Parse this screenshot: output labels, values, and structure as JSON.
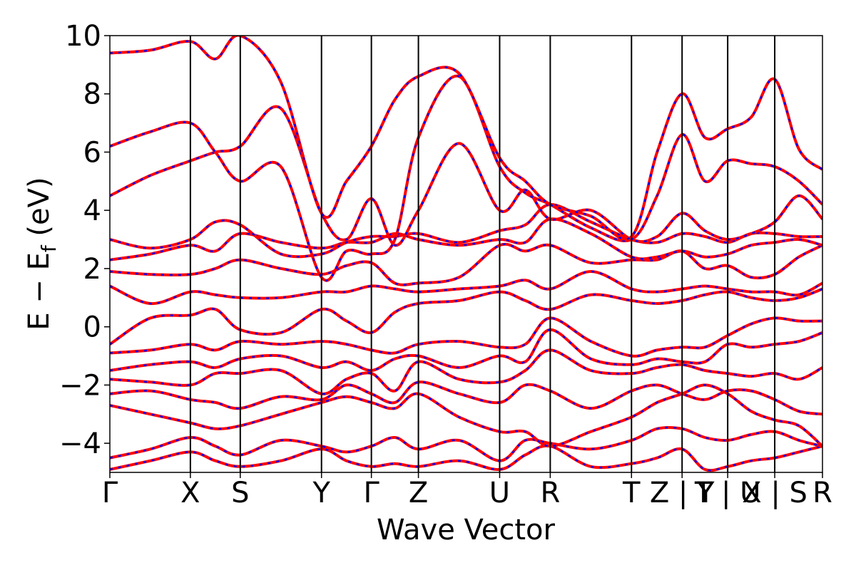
{
  "chart_data": {
    "type": "line",
    "title": "",
    "xlabel": "Wave Vector",
    "ylabel": "E − E_f (eV)",
    "ylabel_parts": {
      "main": "E − E",
      "sub": "f",
      "unit": " (eV)"
    },
    "ylim": [
      -5,
      10
    ],
    "y_ticks": [
      -4,
      -2,
      0,
      2,
      4,
      6,
      8,
      10
    ],
    "y_tick_labels": [
      "−4",
      "−2",
      "0",
      "2",
      "4",
      "6",
      "8",
      "10"
    ],
    "grid": false,
    "legend": "none",
    "x_range": [
      0,
      1
    ],
    "x_tick_labels": [
      "Γ",
      "X",
      "S",
      "Y",
      "Γ",
      "Z",
      "U",
      "R",
      "T",
      "Z | Y",
      "T | U",
      "X | S",
      "R"
    ],
    "x_tick_positions": [
      0.0,
      0.113,
      0.183,
      0.297,
      0.367,
      0.433,
      0.547,
      0.618,
      0.732,
      0.803,
      0.867,
      0.933,
      1.0
    ],
    "colors": {
      "band_up": "#ff0000",
      "band_down": "#0000ff"
    },
    "series": [
      {
        "name": "",
        "color": "#ff0000",
        "style": "solid",
        "note": "spin-up bands; identical to spin-down"
      },
      {
        "name": "",
        "color": "#0000ff",
        "style": "dashed"
      }
    ],
    "bands_x": [
      0.0,
      0.057,
      0.113,
      0.148,
      0.183,
      0.24,
      0.297,
      0.332,
      0.367,
      0.4,
      0.433,
      0.49,
      0.547,
      0.583,
      0.618,
      0.675,
      0.732,
      0.768,
      0.803,
      0.835,
      0.867,
      0.9,
      0.933,
      0.967,
      1.0
    ],
    "bands": [
      [
        -4.9,
        -4.6,
        -4.3,
        -4.6,
        -4.8,
        -4.6,
        -4.2,
        -4.6,
        -4.8,
        -4.7,
        -4.8,
        -4.6,
        -4.9,
        -4.4,
        -4.1,
        -4.8,
        -4.7,
        -4.5,
        -4.2,
        -4.9,
        -4.8,
        -4.6,
        -4.5,
        -4.3,
        -4.1
      ],
      [
        -4.5,
        -4.2,
        -3.8,
        -4.1,
        -4.4,
        -3.9,
        -4.1,
        -4.3,
        -4.1,
        -3.8,
        -4.2,
        -3.9,
        -4.6,
        -3.9,
        -4.0,
        -4.2,
        -3.9,
        -3.5,
        -3.5,
        -3.8,
        -3.9,
        -3.7,
        -3.6,
        -3.9,
        -4.1
      ],
      [
        -2.7,
        -3.0,
        -3.3,
        -3.5,
        -3.4,
        -3.0,
        -2.6,
        -2.4,
        -2.6,
        -2.8,
        -2.3,
        -3.1,
        -3.6,
        -3.6,
        -4.1,
        -3.6,
        -3.1,
        -2.6,
        -2.3,
        -2.0,
        -2.3,
        -2.9,
        -3.2,
        -3.4,
        -4.1
      ],
      [
        -2.3,
        -2.2,
        -2.5,
        -2.6,
        -2.8,
        -2.4,
        -2.5,
        -2.0,
        -2.3,
        -2.6,
        -1.9,
        -2.3,
        -2.6,
        -2.0,
        -2.2,
        -2.8,
        -2.2,
        -2.0,
        -2.3,
        -2.5,
        -2.2,
        -2.2,
        -2.5,
        -2.9,
        -3.0
      ],
      [
        -1.8,
        -1.9,
        -2.0,
        -1.6,
        -1.6,
        -1.5,
        -2.3,
        -1.8,
        -1.6,
        -2.2,
        -1.2,
        -1.8,
        -1.9,
        -1.5,
        -0.8,
        -1.5,
        -1.6,
        -1.4,
        -1.3,
        -1.5,
        -1.6,
        -1.7,
        -1.6,
        -1.8,
        -1.4
      ],
      [
        -1.5,
        -1.3,
        -1.2,
        -1.4,
        -1.1,
        -1.0,
        -1.4,
        -1.2,
        -1.5,
        -1.1,
        -1.0,
        -1.4,
        -1.0,
        -1.2,
        -0.1,
        -1.1,
        -1.3,
        -1.1,
        -1.2,
        -1.2,
        -0.6,
        -0.7,
        -0.6,
        -0.5,
        -0.2
      ],
      [
        -0.9,
        -0.8,
        -0.6,
        -0.8,
        -0.5,
        -0.6,
        -0.5,
        -0.6,
        -0.8,
        -0.9,
        -0.6,
        -0.5,
        -0.7,
        -0.6,
        0.3,
        -0.5,
        -1.0,
        -0.8,
        -0.7,
        -0.7,
        -0.3,
        0.1,
        0.3,
        0.2,
        0.2
      ],
      [
        -0.6,
        0.3,
        0.4,
        0.6,
        -0.1,
        -0.2,
        0.6,
        0.2,
        -0.2,
        0.5,
        0.8,
        0.9,
        1.2,
        0.9,
        0.6,
        1.1,
        0.9,
        0.8,
        0.9,
        1.1,
        1.2,
        1.0,
        0.9,
        1.0,
        1.3
      ],
      [
        1.4,
        0.8,
        1.2,
        1.1,
        1.0,
        1.0,
        1.2,
        1.2,
        1.4,
        1.3,
        1.2,
        1.3,
        1.4,
        1.6,
        1.3,
        1.9,
        1.3,
        1.2,
        1.3,
        1.4,
        1.3,
        1.2,
        1.2,
        1.1,
        1.5
      ],
      [
        1.9,
        1.8,
        1.8,
        2.0,
        2.3,
        2.0,
        1.8,
        2.1,
        2.2,
        1.5,
        1.5,
        1.7,
        2.8,
        2.6,
        2.8,
        2.2,
        2.3,
        2.3,
        2.6,
        2.0,
        2.1,
        1.7,
        1.8,
        2.4,
        2.8
      ],
      [
        2.3,
        2.5,
        2.8,
        2.6,
        3.2,
        2.9,
        2.7,
        2.9,
        2.9,
        3.2,
        3.0,
        2.8,
        3.0,
        2.9,
        3.7,
        3.2,
        2.4,
        2.4,
        2.6,
        2.4,
        2.5,
        2.8,
        2.9,
        3.0,
        2.8
      ],
      [
        3.0,
        2.7,
        3.0,
        3.6,
        3.5,
        2.5,
        2.5,
        2.9,
        3.1,
        3.1,
        3.2,
        2.9,
        3.3,
        3.5,
        4.2,
        3.6,
        3.0,
        2.9,
        3.2,
        3.1,
        2.9,
        3.2,
        3.2,
        3.1,
        3.1
      ],
      [
        4.5,
        5.2,
        5.7,
        6.0,
        6.2,
        7.5,
        3.9,
        3.0,
        4.4,
        2.8,
        4.0,
        6.3,
        4.0,
        4.7,
        3.7,
        4.0,
        3.0,
        3.1,
        3.9,
        3.3,
        3.0,
        3.2,
        3.6,
        4.5,
        3.7
      ],
      [
        6.2,
        6.7,
        7.0,
        6.0,
        5.0,
        5.5,
        1.7,
        2.6,
        2.5,
        3.0,
        6.5,
        8.6,
        5.5,
        4.6,
        4.2,
        3.4,
        3.0,
        4.5,
        6.6,
        5.0,
        5.7,
        5.6,
        5.5,
        5.0,
        4.2
      ],
      [
        9.4,
        9.5,
        9.8,
        9.2,
        10.0,
        8.4,
        3.9,
        5.0,
        6.2,
        7.8,
        8.6,
        8.7,
        5.8,
        5.0,
        4.2,
        3.8,
        3.1,
        6.0,
        8.0,
        6.5,
        6.8,
        7.2,
        8.5,
        6.1,
        5.4
      ]
    ]
  }
}
